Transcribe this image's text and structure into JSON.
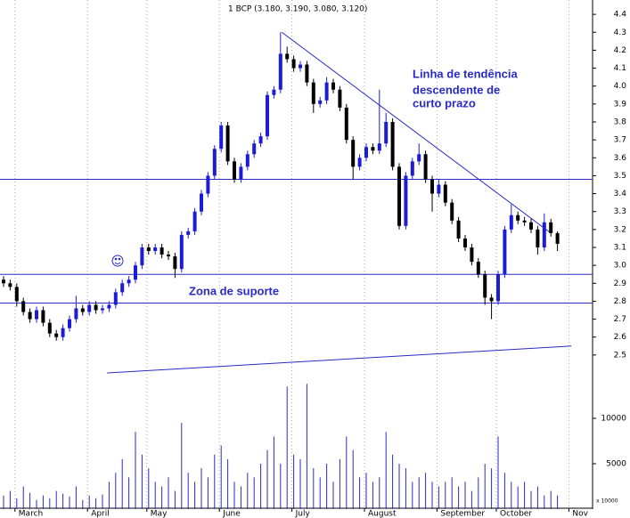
{
  "chart_data": {
    "type": "candlestick",
    "title": "1 BCP (3.180, 3.190, 3.080, 3.120)",
    "categories": [
      null,
      null,
      "March",
      null,
      null,
      null,
      null,
      null,
      null,
      null,
      null,
      null,
      null,
      "April",
      null,
      null,
      null,
      null,
      null,
      null,
      null,
      null,
      "May",
      null,
      null,
      null,
      null,
      null,
      null,
      null,
      null,
      null,
      null,
      "June",
      null,
      null,
      null,
      null,
      null,
      null,
      null,
      null,
      null,
      null,
      "July",
      null,
      null,
      null,
      null,
      null,
      null,
      null,
      null,
      null,
      null,
      "August",
      null,
      null,
      null,
      null,
      null,
      null,
      null,
      null,
      null,
      null,
      "September",
      null,
      null,
      null,
      null,
      null,
      null,
      null,
      null,
      "October",
      null,
      null,
      null,
      null,
      null,
      null,
      null,
      null,
      null,
      null,
      "Nov"
    ],
    "ohlc": [
      [
        2.92,
        2.94,
        2.88,
        2.9
      ],
      [
        2.9,
        2.92,
        2.86,
        2.88
      ],
      [
        2.88,
        2.9,
        2.77,
        2.8
      ],
      [
        2.8,
        2.82,
        2.72,
        2.74
      ],
      [
        2.74,
        2.76,
        2.68,
        2.7
      ],
      [
        2.7,
        2.77,
        2.68,
        2.75
      ],
      [
        2.75,
        2.77,
        2.66,
        2.68
      ],
      [
        2.68,
        2.7,
        2.6,
        2.62
      ],
      [
        2.62,
        2.64,
        2.58,
        2.6
      ],
      [
        2.6,
        2.67,
        2.58,
        2.65
      ],
      [
        2.65,
        2.72,
        2.63,
        2.7
      ],
      [
        2.7,
        2.83,
        2.68,
        2.76
      ],
      [
        2.76,
        2.78,
        2.72,
        2.74
      ],
      [
        2.74,
        2.8,
        2.72,
        2.78
      ],
      [
        2.78,
        2.8,
        2.73,
        2.75
      ],
      [
        2.75,
        2.78,
        2.73,
        2.76
      ],
      [
        2.76,
        2.8,
        2.74,
        2.78
      ],
      [
        2.78,
        2.87,
        2.76,
        2.85
      ],
      [
        2.85,
        2.92,
        2.83,
        2.9
      ],
      [
        2.9,
        2.94,
        2.88,
        2.92
      ],
      [
        2.92,
        3.02,
        2.9,
        3.0
      ],
      [
        3.0,
        3.12,
        2.98,
        3.1
      ],
      [
        3.1,
        3.12,
        3.06,
        3.08
      ],
      [
        3.08,
        3.12,
        3.06,
        3.1
      ],
      [
        3.1,
        3.12,
        3.04,
        3.06
      ],
      [
        3.06,
        3.08,
        3.03,
        3.05
      ],
      [
        3.05,
        3.07,
        2.93,
        2.98
      ],
      [
        2.98,
        3.19,
        2.96,
        3.17
      ],
      [
        3.17,
        3.21,
        3.15,
        3.19
      ],
      [
        3.19,
        3.32,
        3.17,
        3.3
      ],
      [
        3.3,
        3.42,
        3.28,
        3.4
      ],
      [
        3.4,
        3.52,
        3.38,
        3.5
      ],
      [
        3.5,
        3.67,
        3.48,
        3.65
      ],
      [
        3.65,
        3.8,
        3.63,
        3.78
      ],
      [
        3.78,
        3.8,
        3.56,
        3.58
      ],
      [
        3.58,
        3.6,
        3.46,
        3.48
      ],
      [
        3.48,
        3.57,
        3.46,
        3.55
      ],
      [
        3.55,
        3.64,
        3.53,
        3.62
      ],
      [
        3.62,
        3.7,
        3.6,
        3.68
      ],
      [
        3.68,
        3.74,
        3.66,
        3.72
      ],
      [
        3.72,
        3.97,
        3.7,
        3.95
      ],
      [
        3.95,
        4.0,
        3.93,
        3.98
      ],
      [
        3.98,
        4.3,
        3.96,
        4.18
      ],
      [
        4.18,
        4.22,
        4.13,
        4.15
      ],
      [
        4.15,
        4.17,
        4.08,
        4.1
      ],
      [
        4.1,
        4.14,
        4.08,
        4.12
      ],
      [
        4.12,
        4.14,
        4.0,
        4.02
      ],
      [
        4.02,
        4.04,
        3.85,
        3.9
      ],
      [
        3.9,
        3.94,
        3.88,
        3.92
      ],
      [
        3.92,
        4.05,
        3.9,
        4.02
      ],
      [
        4.02,
        4.04,
        3.96,
        3.98
      ],
      [
        3.98,
        4.0,
        3.86,
        3.88
      ],
      [
        3.88,
        3.9,
        3.68,
        3.7
      ],
      [
        3.7,
        3.72,
        3.48,
        3.55
      ],
      [
        3.55,
        3.62,
        3.53,
        3.6
      ],
      [
        3.6,
        3.68,
        3.58,
        3.66
      ],
      [
        3.66,
        3.68,
        3.62,
        3.64
      ],
      [
        3.64,
        3.98,
        3.62,
        3.68
      ],
      [
        3.68,
        3.85,
        3.66,
        3.8
      ],
      [
        3.8,
        3.82,
        3.53,
        3.55
      ],
      [
        3.55,
        3.57,
        3.2,
        3.22
      ],
      [
        3.22,
        3.52,
        3.2,
        3.5
      ],
      [
        3.5,
        3.6,
        3.48,
        3.58
      ],
      [
        3.58,
        3.68,
        3.56,
        3.62
      ],
      [
        3.62,
        3.64,
        3.46,
        3.48
      ],
      [
        3.48,
        3.5,
        3.3,
        3.4
      ],
      [
        3.4,
        3.48,
        3.38,
        3.45
      ],
      [
        3.45,
        3.47,
        3.33,
        3.35
      ],
      [
        3.35,
        3.37,
        3.23,
        3.25
      ],
      [
        3.25,
        3.27,
        3.13,
        3.15
      ],
      [
        3.15,
        3.17,
        3.08,
        3.1
      ],
      [
        3.1,
        3.12,
        3.0,
        3.02
      ],
      [
        3.02,
        3.04,
        2.93,
        2.95
      ],
      [
        2.95,
        2.97,
        2.78,
        2.82
      ],
      [
        2.82,
        2.84,
        2.7,
        2.8
      ],
      [
        2.8,
        2.97,
        2.78,
        2.95
      ],
      [
        2.95,
        3.22,
        2.93,
        3.2
      ],
      [
        3.2,
        3.34,
        3.18,
        3.28
      ],
      [
        3.28,
        3.3,
        3.23,
        3.25
      ],
      [
        3.25,
        3.27,
        3.22,
        3.24
      ],
      [
        3.24,
        3.26,
        3.18,
        3.2
      ],
      [
        3.2,
        3.22,
        3.06,
        3.1
      ],
      [
        3.1,
        3.29,
        3.08,
        3.24
      ],
      [
        3.24,
        3.26,
        3.16,
        3.18
      ],
      [
        3.18,
        3.19,
        3.08,
        3.12
      ],
      null,
      null
    ],
    "volume": [
      1500,
      2000,
      1200,
      2500,
      1800,
      1000,
      1500,
      1200,
      2000,
      1700,
      1400,
      2500,
      1000,
      1500,
      1200,
      1600,
      3000,
      4000,
      5500,
      3500,
      8500,
      6000,
      4500,
      3000,
      2500,
      3500,
      2000,
      9500,
      4000,
      3000,
      4500,
      3500,
      6000,
      7000,
      5500,
      3000,
      2500,
      4000,
      3500,
      5000,
      6500,
      8000,
      5000,
      13500,
      6000,
      5500,
      13800,
      4500,
      3500,
      5000,
      3000,
      5500,
      8000,
      6500,
      3500,
      4000,
      3000,
      3500,
      8500,
      6000,
      5000,
      4500,
      3000,
      3500,
      4000,
      3000,
      2500,
      3000,
      3500,
      2500,
      3000,
      2000,
      3500,
      5000,
      4500,
      8000,
      4000,
      3000,
      2500,
      3000,
      2000,
      2500,
      1500,
      2000,
      1500,
      null,
      null
    ],
    "up_color": "#1c1cd8",
    "down_color": "#000000",
    "line_color": "#2a2ac8",
    "volume_color": "#2a2ac8",
    "ylim": [
      2.42,
      4.48
    ],
    "yticks": [
      2.5,
      2.6,
      2.7,
      2.8,
      2.9,
      {
        "value": 3.0,
        "label": "3.0"
      },
      3.1,
      3.2,
      3.3,
      3.4,
      3.5,
      3.6,
      3.7,
      3.8,
      3.9,
      {
        "value": 4.0,
        "label": "4.0"
      },
      4.1,
      4.2,
      4.3,
      4.4
    ],
    "volume_ylim": [
      0,
      15000
    ],
    "volume_yticks": [
      5000,
      10000
    ],
    "volume_unit_label": "x 10000",
    "levels": [
      3.48,
      2.95,
      2.79
    ],
    "trendlines": [
      {
        "points": [
          [
            42.2,
            4.3
          ],
          [
            83,
            3.18
          ]
        ]
      },
      {
        "points": [
          [
            15.7,
            2.4
          ],
          [
            86.1,
            2.55
          ]
        ]
      }
    ],
    "annotations": [
      "Linha de tendência",
      "descendente de",
      "curto prazo",
      "Zona de suporte"
    ],
    "grid": true
  }
}
